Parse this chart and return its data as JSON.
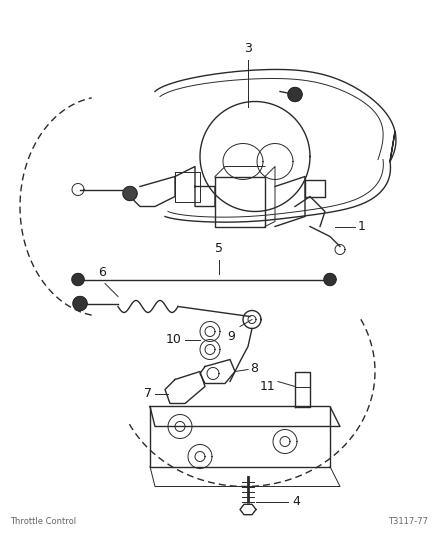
{
  "bg_color": "#ffffff",
  "line_color": "#2a2a2a",
  "label_color": "#1a1a1a",
  "footer_left": "Throttle Control",
  "footer_right": "T3117-77",
  "figsize": [
    4.38,
    5.33
  ],
  "dpi": 100
}
